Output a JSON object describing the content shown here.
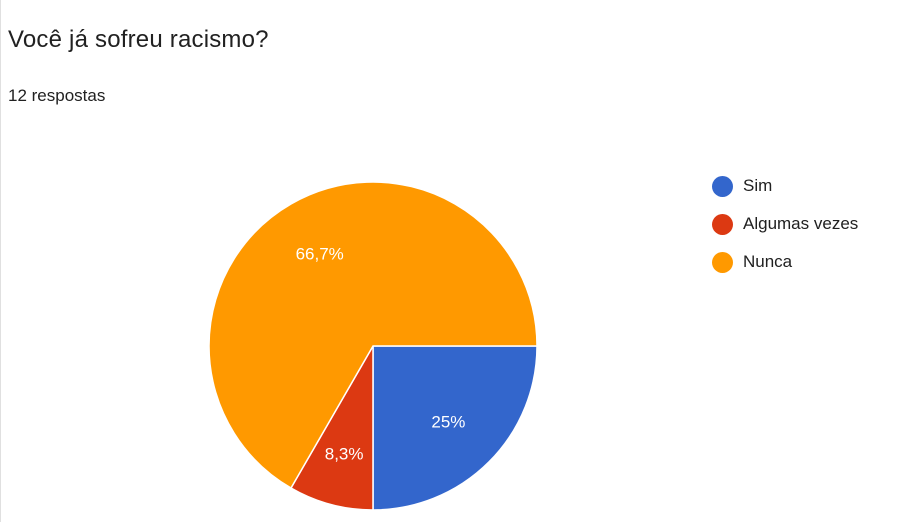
{
  "form": {
    "question": "Você já sofreu racismo?",
    "response_count": "12 respostas"
  },
  "chart_data": {
    "type": "pie",
    "title": "Você já sofreu racismo?",
    "total_responses": 12,
    "categories": [
      "Sim",
      "Algumas vezes",
      "Nunca"
    ],
    "values": [
      3,
      1,
      8
    ],
    "percent_labels": [
      "25%",
      "8,3%",
      "66,7%"
    ],
    "colors": [
      "#3366cc",
      "#dc3912",
      "#ff9900"
    ],
    "start_angle_deg": 90,
    "direction": "clockwise",
    "legend_position": "right"
  }
}
